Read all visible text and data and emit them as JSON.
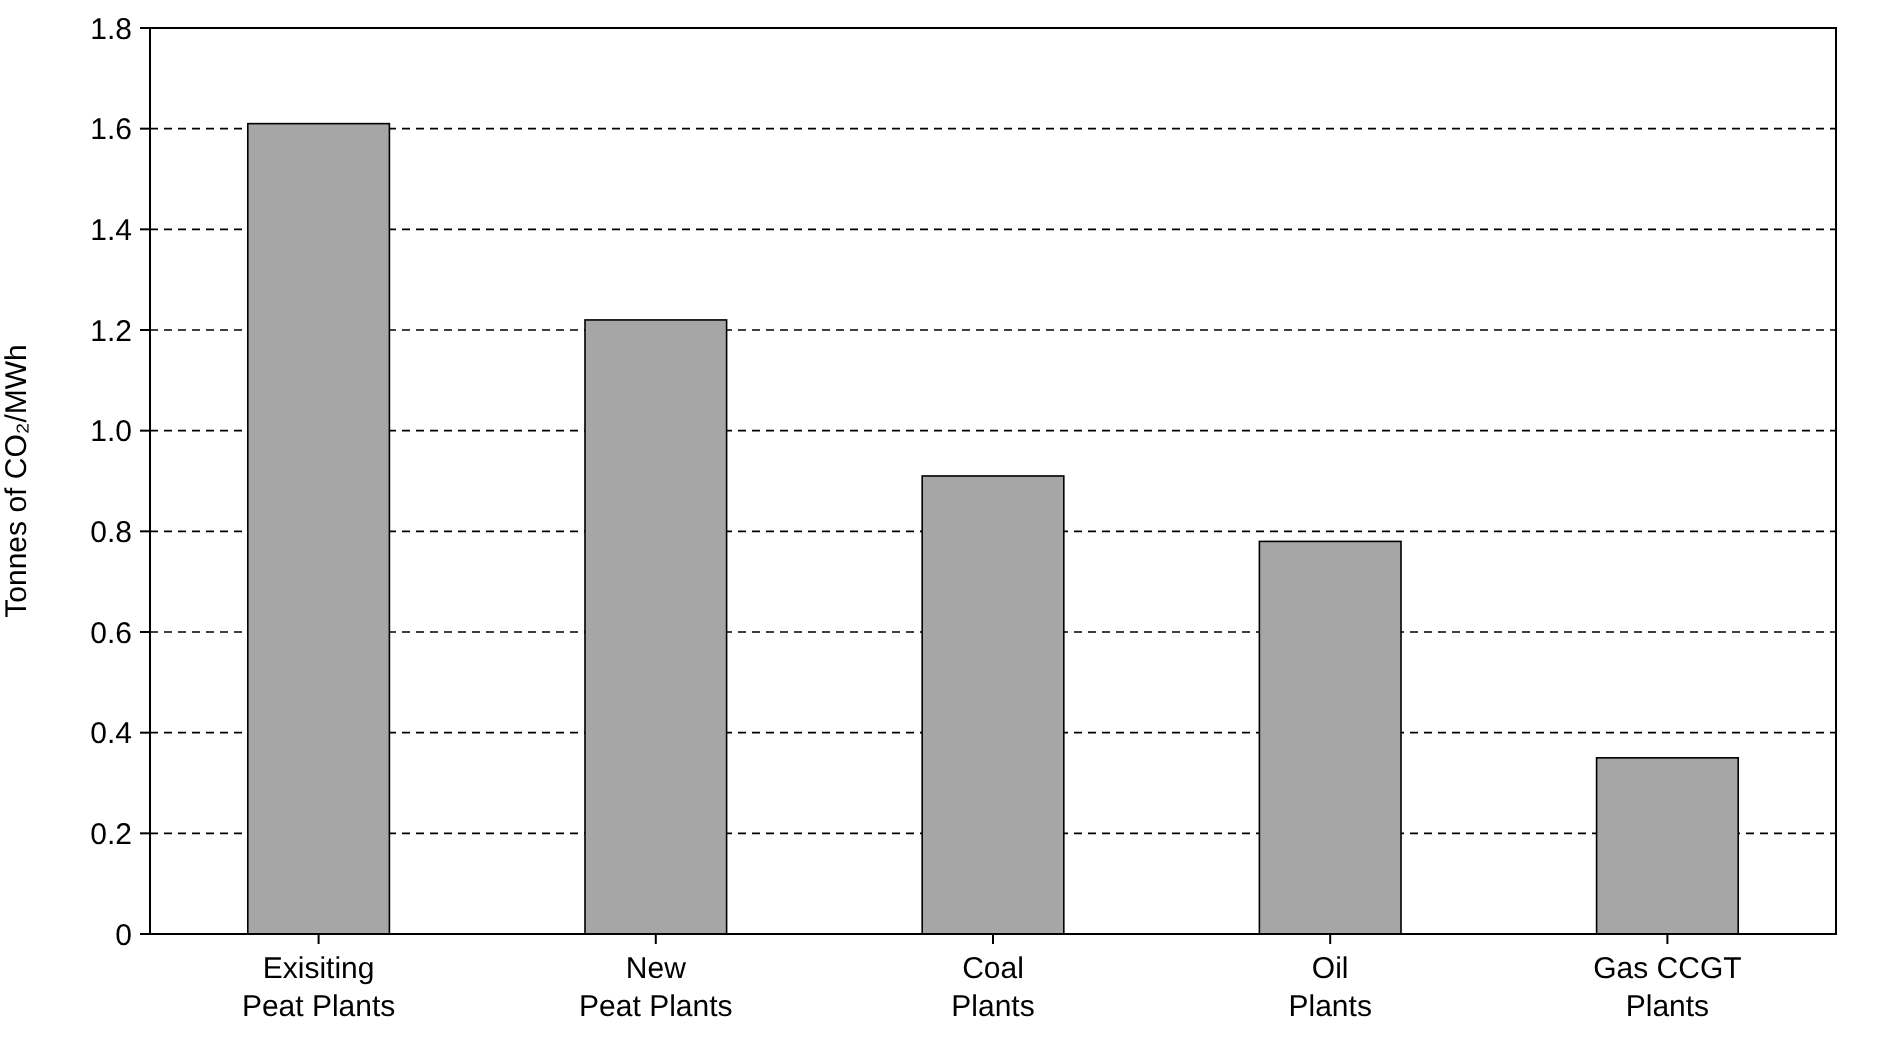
{
  "chart_data": {
    "type": "bar",
    "ylabel": "Tonnes of CO₂/MWh",
    "categories": [
      "Exisiting\nPeat Plants",
      "New\nPeat Plants",
      "Coal\nPlants",
      "Oil\nPlants",
      "Gas CCGT\nPlants"
    ],
    "values": [
      1.61,
      1.22,
      0.91,
      0.78,
      0.35
    ],
    "color": "#a6a6a6",
    "ylim": [
      0,
      1.8
    ],
    "yticks": [
      0,
      0.2,
      0.4,
      0.6,
      0.8,
      {
        "value": 1,
        "label": "1.0"
      },
      1.2,
      1.4,
      1.6,
      1.8
    ],
    "grid": "y"
  }
}
